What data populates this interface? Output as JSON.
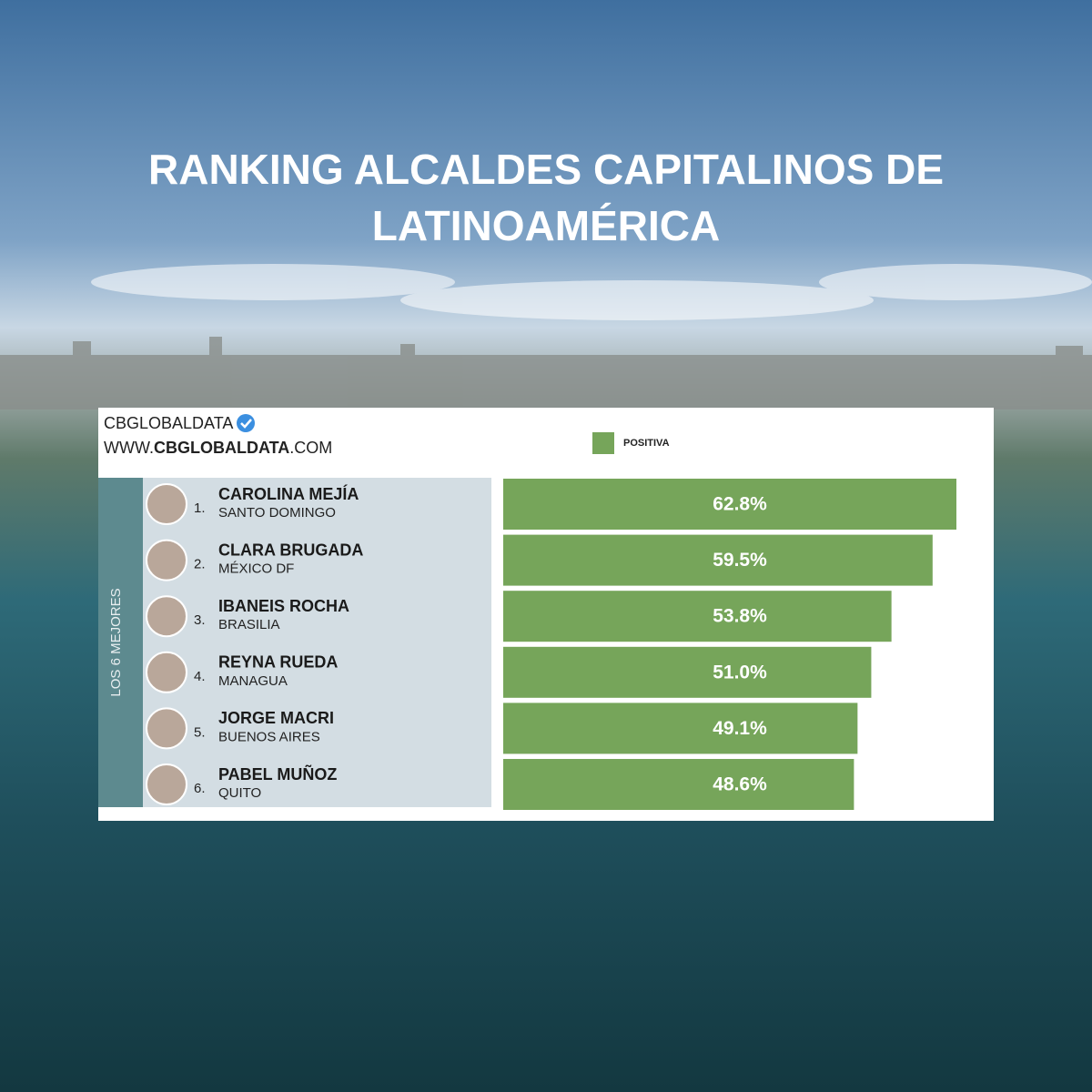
{
  "chart_data": {
    "type": "bar",
    "orientation": "horizontal",
    "title": "RANKING ALCALDES CAPITALINOS DE LATINOAMÉRICA",
    "source": "CBGLOBALDATA",
    "website_prefix": "WWW.",
    "website_name": "CBGLOBALDATA",
    "website_suffix": ".COM",
    "side_label": "LOS 6 MEJORES",
    "ranks": [
      "1.",
      "2.",
      "3.",
      "4.",
      "5.",
      "6."
    ],
    "categories": [
      "CAROLINA MEJÍA",
      "CLARA BRUGADA",
      "IBANEIS ROCHA",
      "REYNA RUEDA",
      "JORGE MACRI",
      "PABEL MUÑOZ"
    ],
    "cities": [
      "SANTO DOMINGO",
      "MÉXICO DF",
      "BRASILIA",
      "MANAGUA",
      "BUENOS AIRES",
      "QUITO"
    ],
    "series": [
      {
        "name": "POSITIVA",
        "color": "#76a55a",
        "values": [
          62.8,
          59.5,
          53.8,
          51.0,
          49.1,
          48.6
        ],
        "value_labels": [
          "62.8%",
          "59.5%",
          "53.8%",
          "51.0%",
          "49.1%",
          "48.6%"
        ]
      }
    ]
  }
}
